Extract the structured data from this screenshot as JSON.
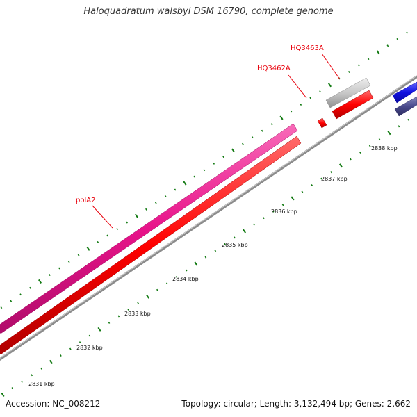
{
  "title": "Haloquadratum walsbyi DSM 16790, complete genome",
  "footer": {
    "accession": "Accession: NC_008212",
    "summary": "Topology: circular; Length: 3,132,494 bp; Genes: 2,662"
  },
  "kbp_labels": [
    "2831 kbp",
    "2832 kbp",
    "2833 kbp",
    "2834 kbp",
    "2835 kbp",
    "2836 kbp",
    "2837 kbp",
    "2838 kbp"
  ],
  "genes": [
    {
      "label": "polA2",
      "color": "#e8138a",
      "strand": "outer"
    },
    {
      "label": "",
      "color": "#ff0000",
      "strand": "inner"
    },
    {
      "label": "HQ3462A",
      "color": "#ff0000",
      "strand": "inner"
    },
    {
      "label": "HQ3463A",
      "color": "#c8c8c8",
      "strand": "outer"
    },
    {
      "label": "",
      "color": "#ff0000",
      "strand": "inner"
    },
    {
      "label": "",
      "color": "#1010e0",
      "strand": "outer"
    },
    {
      "label": "",
      "color": "#4a4a8c",
      "strand": "inner"
    }
  ],
  "colors": {
    "backbone": "#8c8c8c",
    "ticks": "#127a12",
    "label_red": "#e8000b",
    "pink": "#e8138a",
    "red": "#ff0000",
    "grey": "#c8c8c8",
    "blue": "#1010e0",
    "slate": "#4a4a8c"
  }
}
